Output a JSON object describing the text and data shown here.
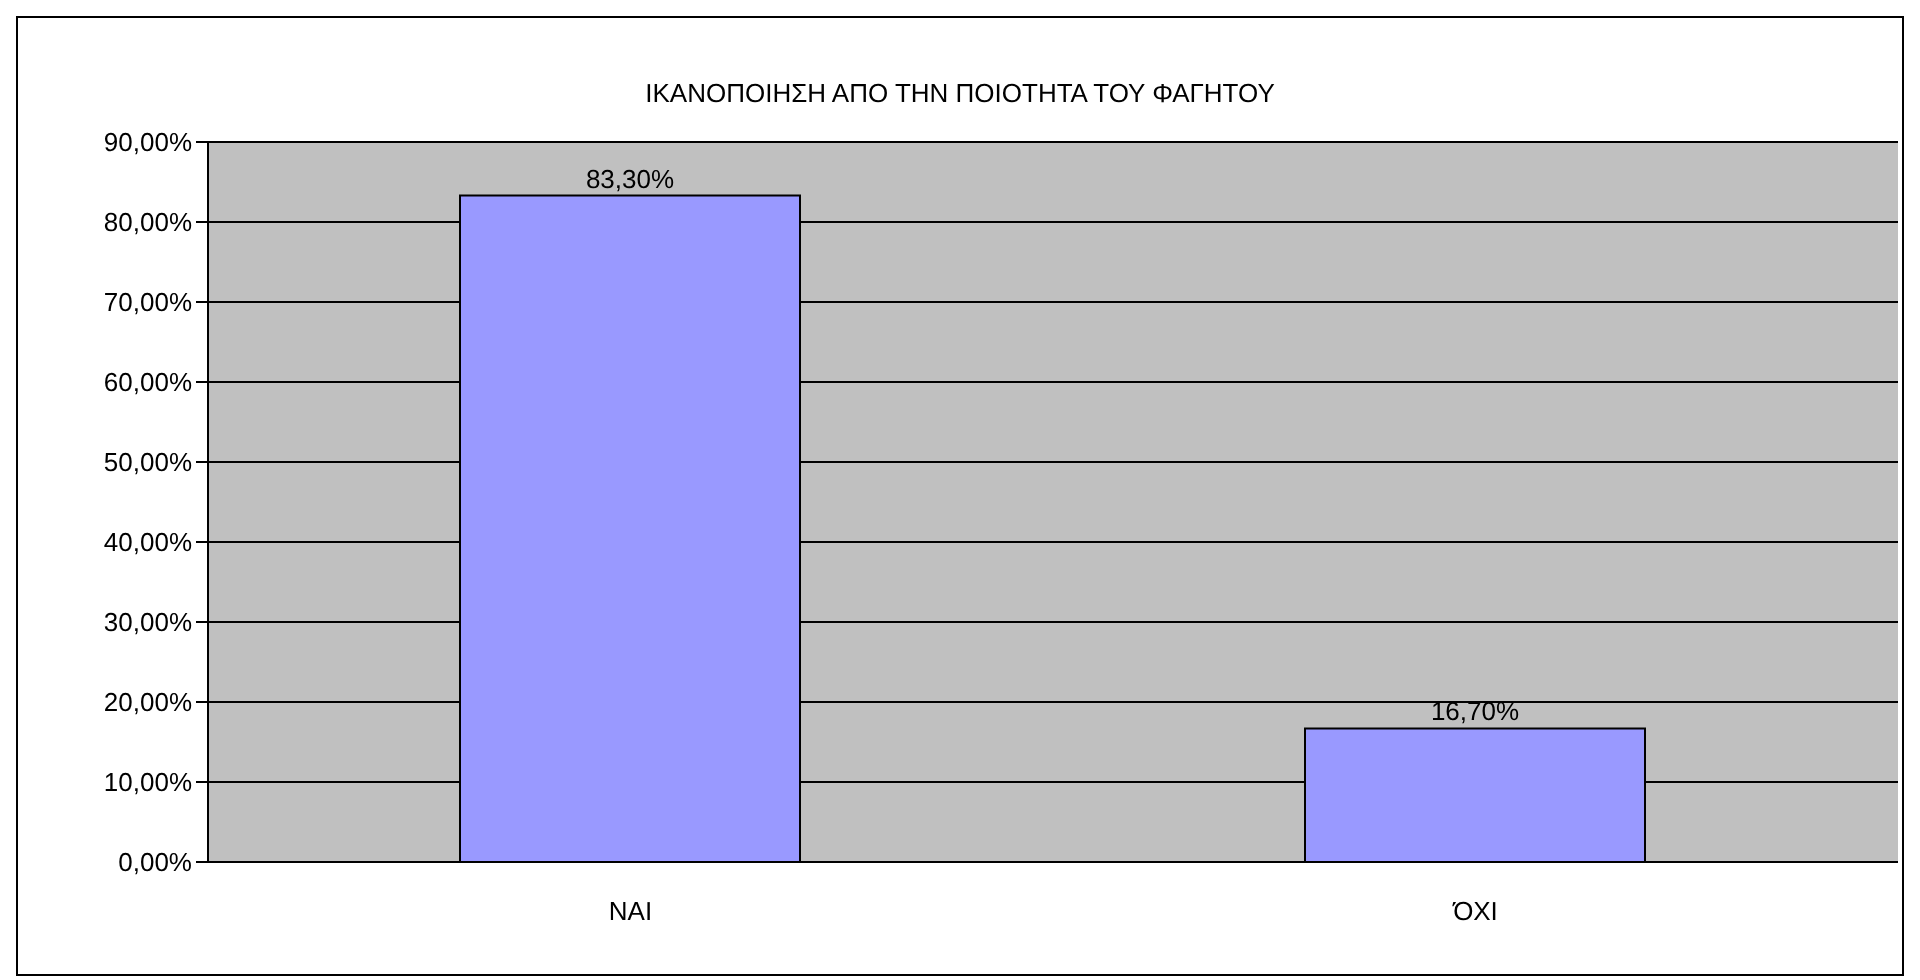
{
  "chart_data": {
    "type": "bar",
    "title": "ΙΚΑΝΟΠΟΙΗΣΗ ΑΠΟ ΤΗΝ ΠΟΙΟΤΗΤΑ ΤΟΥ ΦΑΓΗΤΟΥ",
    "categories": [
      "ΝΑΙ",
      "ΌΧΙ"
    ],
    "values": [
      83.3,
      16.7
    ],
    "value_labels": [
      "83,30%",
      "16,70%"
    ],
    "color": "#9999ff",
    "ylim": [
      0,
      90
    ],
    "yticks": [
      {
        "value": 0,
        "label": "0,00%"
      },
      {
        "value": 10,
        "label": "10,00%"
      },
      {
        "value": 20,
        "label": "20,00%"
      },
      {
        "value": 30,
        "label": "30,00%"
      },
      {
        "value": 40,
        "label": "40,00%"
      },
      {
        "value": 50,
        "label": "50,00%"
      },
      {
        "value": 60,
        "label": "60,00%"
      },
      {
        "value": 70,
        "label": "70,00%"
      },
      {
        "value": 80,
        "label": "80,00%"
      },
      {
        "value": 90,
        "label": "90,00%"
      }
    ],
    "grid": "y",
    "legend": false
  }
}
